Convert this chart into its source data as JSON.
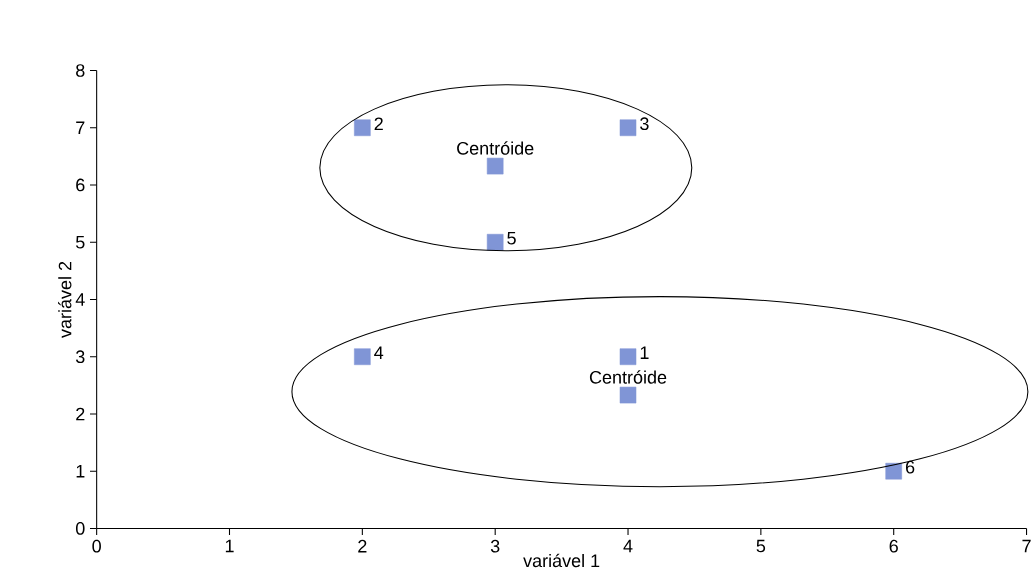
{
  "chart_data": {
    "type": "scatter",
    "xlabel": "variável 1",
    "ylabel": "variável 2",
    "x": [
      4,
      2,
      4,
      2,
      3,
      6,
      3,
      4
    ],
    "values": [
      3,
      7,
      7,
      3,
      5,
      1,
      6.33,
      2.33
    ],
    "color": "#8095d6",
    "marker": "square",
    "grid": false,
    "xlim": [
      0,
      7
    ],
    "ylim": [
      0,
      8
    ],
    "xticks": [
      0,
      1,
      2,
      3,
      4,
      5,
      6,
      7
    ],
    "yticks": [
      0,
      1,
      2,
      3,
      4,
      5,
      6,
      7,
      8
    ],
    "annotations": [
      {
        "text": "1",
        "x": 4,
        "y": 3
      },
      {
        "text": "2",
        "x": 2,
        "y": 7
      },
      {
        "text": "3",
        "x": 4,
        "y": 7
      },
      {
        "text": "4",
        "x": 2,
        "y": 3
      },
      {
        "text": "5",
        "x": 3,
        "y": 5
      },
      {
        "text": "6",
        "x": 6,
        "y": 1
      },
      {
        "text": "Centróide",
        "x": 3,
        "y": 6.33
      },
      {
        "text": "Centróide",
        "x": 4,
        "y": 2.33
      }
    ]
  }
}
